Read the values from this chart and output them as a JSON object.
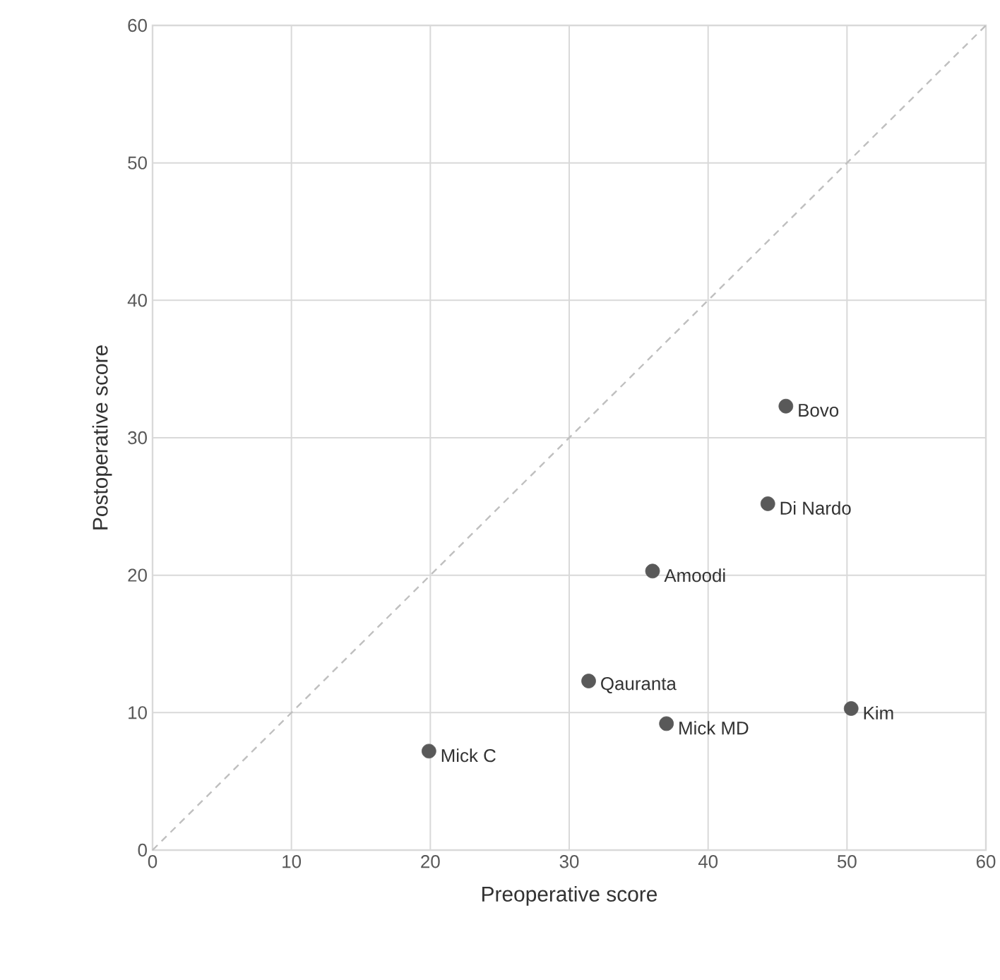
{
  "chart_data": {
    "type": "scatter",
    "xlabel": "Preoperative score",
    "ylabel": "Postoperative score",
    "xlim": [
      0,
      60
    ],
    "ylim": [
      0,
      60
    ],
    "xticks": [
      0,
      10,
      20,
      30,
      40,
      50,
      60
    ],
    "yticks": [
      0,
      10,
      20,
      30,
      40,
      50,
      60
    ],
    "grid": true,
    "series": [
      {
        "type": "line",
        "color": "#bfbfbf",
        "line_style": "dashed",
        "marker": "none",
        "x": [
          0,
          60
        ],
        "values": [
          0,
          60
        ]
      },
      {
        "color": "#595959",
        "marker": "circle",
        "x": [
          45.6,
          44.3,
          36.0,
          31.4,
          37.0,
          50.3,
          19.9
        ],
        "values": [
          32.3,
          25.2,
          20.3,
          12.3,
          9.2,
          10.3,
          7.2
        ]
      }
    ],
    "annotations": [
      {
        "text": "Bovo",
        "x": 45.6,
        "y": 32.3
      },
      {
        "text": "Di Nardo",
        "x": 44.3,
        "y": 25.2
      },
      {
        "text": "Amoodi",
        "x": 36.0,
        "y": 20.3
      },
      {
        "text": "Qauranta",
        "x": 31.4,
        "y": 12.3
      },
      {
        "text": "Mick MD",
        "x": 37.0,
        "y": 9.2
      },
      {
        "text": "Kim",
        "x": 50.3,
        "y": 10.3
      },
      {
        "text": "Mick C",
        "x": 19.9,
        "y": 7.2
      }
    ]
  }
}
